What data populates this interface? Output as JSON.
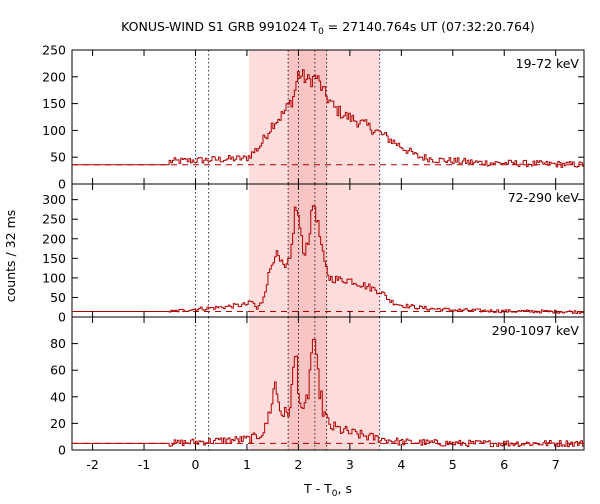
{
  "chart_data": {
    "type": "line",
    "title_prefix": "KONUS-WIND S1 GRB 991024 T",
    "title_sub": "0",
    "title_suffix": " = 27140.764s UT (07:32:20.764)",
    "xlabel_prefix": "T - T",
    "xlabel_sub": "0",
    "xlabel_suffix": ", s",
    "ylabel": "counts / 32 ms",
    "xlim": [
      -2.4,
      7.55
    ],
    "x_ticks": [
      -2,
      -1,
      0,
      1,
      2,
      3,
      4,
      5,
      6,
      7
    ],
    "x_tick_labels": [
      "-2",
      "-1",
      "0",
      "1",
      "2",
      "3",
      "4",
      "5",
      "6",
      "7"
    ],
    "line_color": "#b00000",
    "shade_color": "#ffdddd",
    "shade_core_color": "#f8c4c4",
    "shaded_interval": [
      1.04,
      3.58
    ],
    "shaded_core_interval": [
      1.8,
      2.55
    ],
    "dotted_lines_x": [
      0.0,
      0.256,
      1.8,
      2.0,
      2.32,
      2.55,
      3.58
    ],
    "panels": [
      {
        "energy_label": "19-72 keV",
        "ylim": [
          0,
          250
        ],
        "y_ticks": [
          0,
          50,
          100,
          150,
          200,
          250
        ],
        "y_tick_labels": [
          "0",
          "50",
          "100",
          "150",
          "200",
          "250"
        ],
        "background": 36,
        "noise": 6,
        "control_points": [
          [
            -2.4,
            36
          ],
          [
            -0.52,
            36
          ],
          [
            -0.5,
            42
          ],
          [
            0.0,
            44
          ],
          [
            0.5,
            46
          ],
          [
            1.0,
            48
          ],
          [
            1.25,
            70
          ],
          [
            1.5,
            112
          ],
          [
            1.7,
            130
          ],
          [
            1.9,
            160
          ],
          [
            2.0,
            205
          ],
          [
            2.1,
            200
          ],
          [
            2.2,
            192
          ],
          [
            2.35,
            200
          ],
          [
            2.5,
            170
          ],
          [
            2.7,
            142
          ],
          [
            2.9,
            128
          ],
          [
            3.2,
            115
          ],
          [
            3.5,
            100
          ],
          [
            3.8,
            82
          ],
          [
            4.0,
            70
          ],
          [
            4.3,
            52
          ],
          [
            4.7,
            45
          ],
          [
            5.5,
            40
          ],
          [
            6.5,
            38
          ],
          [
            7.55,
            36
          ]
        ]
      },
      {
        "energy_label": "72-290 keV",
        "ylim": [
          0,
          340
        ],
        "y_ticks": [
          0,
          50,
          100,
          150,
          200,
          250,
          300
        ],
        "y_tick_labels": [
          "0",
          "50",
          "100",
          "150",
          "200",
          "250",
          "300"
        ],
        "background": 14,
        "noise": 4,
        "control_points": [
          [
            -2.4,
            14
          ],
          [
            -0.5,
            14
          ],
          [
            0.0,
            20
          ],
          [
            0.5,
            25
          ],
          [
            1.0,
            32
          ],
          [
            1.1,
            40
          ],
          [
            1.2,
            20
          ],
          [
            1.3,
            40
          ],
          [
            1.45,
            120
          ],
          [
            1.55,
            165
          ],
          [
            1.65,
            140
          ],
          [
            1.75,
            120
          ],
          [
            1.85,
            150
          ],
          [
            1.95,
            290
          ],
          [
            2.02,
            240
          ],
          [
            2.1,
            160
          ],
          [
            2.2,
            200
          ],
          [
            2.3,
            300
          ],
          [
            2.4,
            220
          ],
          [
            2.5,
            140
          ],
          [
            2.6,
            100
          ],
          [
            2.8,
            95
          ],
          [
            3.0,
            95
          ],
          [
            3.3,
            80
          ],
          [
            3.6,
            65
          ],
          [
            3.8,
            40
          ],
          [
            4.0,
            30
          ],
          [
            4.5,
            22
          ],
          [
            5.0,
            18
          ],
          [
            6.0,
            15
          ],
          [
            7.55,
            13
          ]
        ]
      },
      {
        "energy_label": "290-1097 keV",
        "ylim": [
          0,
          100
        ],
        "y_ticks": [
          0,
          20,
          40,
          60,
          80
        ],
        "y_tick_labels": [
          "0",
          "20",
          "40",
          "60",
          "80"
        ],
        "background": 5,
        "noise": 2.5,
        "control_points": [
          [
            -2.4,
            5
          ],
          [
            -0.5,
            5
          ],
          [
            0.0,
            6
          ],
          [
            0.5,
            7
          ],
          [
            1.0,
            8
          ],
          [
            1.2,
            10
          ],
          [
            1.35,
            15
          ],
          [
            1.45,
            30
          ],
          [
            1.55,
            50
          ],
          [
            1.65,
            30
          ],
          [
            1.8,
            25
          ],
          [
            1.9,
            55
          ],
          [
            1.95,
            76
          ],
          [
            2.02,
            40
          ],
          [
            2.1,
            25
          ],
          [
            2.2,
            45
          ],
          [
            2.28,
            86
          ],
          [
            2.38,
            55
          ],
          [
            2.48,
            30
          ],
          [
            2.6,
            18
          ],
          [
            3.0,
            13
          ],
          [
            3.5,
            9
          ],
          [
            4.0,
            6
          ],
          [
            5.0,
            5
          ],
          [
            7.55,
            5
          ]
        ]
      }
    ]
  }
}
